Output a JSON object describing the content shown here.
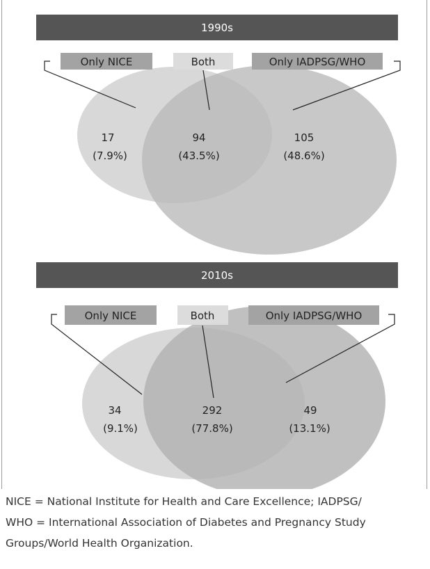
{
  "panels": [
    {
      "period": "1990s",
      "labels": {
        "only_nice": "Only NICE",
        "both": "Both",
        "only_iadpsg": "Only IADPSG/WHO"
      },
      "regions": {
        "only_nice": {
          "count": "17",
          "pct": "(7.9%)"
        },
        "both": {
          "count": "94",
          "pct": "(43.5%)"
        },
        "only_iadpsg": {
          "count": "105",
          "pct": "(48.6%)"
        }
      }
    },
    {
      "period": "2010s",
      "labels": {
        "only_nice": "Only NICE",
        "both": "Both",
        "only_iadpsg": "Only IADPSG/WHO"
      },
      "regions": {
        "only_nice": {
          "count": "34",
          "pct": "(9.1%)"
        },
        "both": {
          "count": "292",
          "pct": "(77.8%)"
        },
        "only_iadpsg": {
          "count": "49",
          "pct": "(13.1%)"
        }
      }
    }
  ],
  "footnote": {
    "line1": "NICE = National Institute for Health and Care Excellence; IADPSG/",
    "line2": "WHO = International Association of Diabetes and Pregnancy Study",
    "line3": "Groups/World Health Organization."
  },
  "colors": {
    "header_bar": "#555555",
    "label_box_dark": "#a3a3a3",
    "label_box_light": "#dcdcdc",
    "circle_nice": "#d8d8d8",
    "circle_iadpsg": "#b9b9b9",
    "overlap": "#a9a9a9"
  }
}
